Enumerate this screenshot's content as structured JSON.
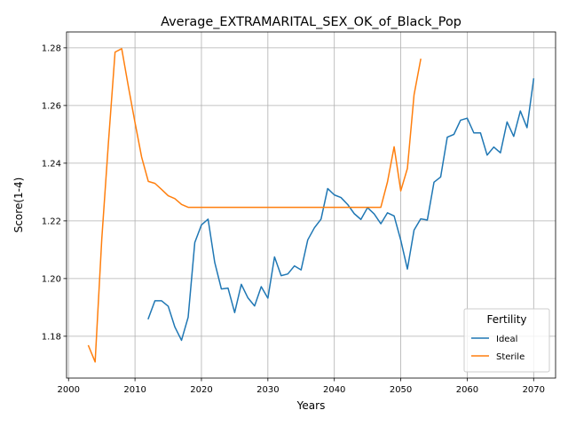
{
  "chart_data": {
    "type": "line",
    "title": "Average_EXTRAMARITAL_SEX_OK_of_Black_Pop",
    "xlabel": "Years",
    "ylabel": "Score(1-4)",
    "xlim": [
      1999.7,
      2073.3
    ],
    "ylim": [
      1.1655,
      1.2855
    ],
    "xticks": [
      2000,
      2010,
      2020,
      2030,
      2040,
      2050,
      2060,
      2070
    ],
    "yticks": [
      1.18,
      1.2,
      1.22,
      1.24,
      1.26,
      1.28
    ],
    "ytick_labels": [
      "1.18",
      "1.20",
      "1.22",
      "1.24",
      "1.26",
      "1.28"
    ],
    "grid": true,
    "legend": {
      "title": "Fertility",
      "placement": "lower-right"
    },
    "series": [
      {
        "name": "Ideal",
        "color": "#1f77b4",
        "x": [
          2012,
          2013,
          2014,
          2015,
          2016,
          2017,
          2018,
          2019,
          2020,
          2021,
          2022,
          2023,
          2024,
          2025,
          2026,
          2027,
          2028,
          2029,
          2030,
          2031,
          2032,
          2033,
          2034,
          2035,
          2036,
          2037,
          2038,
          2039,
          2040,
          2041,
          2042,
          2043,
          2044,
          2045,
          2046,
          2047,
          2048,
          2049,
          2050,
          2051,
          2052,
          2053,
          2054,
          2055,
          2056,
          2057,
          2058,
          2059,
          2060,
          2061,
          2062,
          2063,
          2064,
          2065,
          2066,
          2067,
          2068,
          2069,
          2070
        ],
        "y": [
          1.1861,
          1.1923,
          1.1923,
          1.1904,
          1.1832,
          1.1786,
          1.1866,
          1.2125,
          1.2186,
          1.2206,
          1.2056,
          1.1964,
          1.1967,
          1.1882,
          1.198,
          1.1933,
          1.1905,
          1.1972,
          1.1932,
          1.2075,
          1.201,
          1.2016,
          1.2044,
          1.203,
          1.2134,
          1.2176,
          1.2206,
          1.2312,
          1.229,
          1.2281,
          1.2257,
          1.2225,
          1.2205,
          1.2246,
          1.2224,
          1.219,
          1.2228,
          1.2217,
          1.2133,
          1.2033,
          1.2168,
          1.2207,
          1.2203,
          1.2334,
          1.2352,
          1.249,
          1.25,
          1.2549,
          1.2556,
          1.2505,
          1.2505,
          1.2428,
          1.2456,
          1.2436,
          1.2543,
          1.2493,
          1.2581,
          1.2523,
          1.2692
        ]
      },
      {
        "name": "Sterile",
        "color": "#ff7f0e",
        "x": [
          2003,
          2004,
          2005,
          2006,
          2007,
          2008,
          2009,
          2010,
          2011,
          2012,
          2013,
          2014,
          2015,
          2016,
          2017,
          2018,
          2019,
          2020,
          2025,
          2030,
          2035,
          2040,
          2045,
          2047,
          2048,
          2049,
          2050,
          2051,
          2052,
          2053
        ],
        "y": [
          1.1767,
          1.1711,
          1.2137,
          1.2471,
          1.2785,
          1.2797,
          1.2666,
          1.2541,
          1.2421,
          1.2337,
          1.233,
          1.2309,
          1.2287,
          1.2277,
          1.2257,
          1.2247,
          1.2247,
          1.2247,
          1.2247,
          1.2247,
          1.2247,
          1.2247,
          1.2247,
          1.2247,
          1.2335,
          1.2457,
          1.2304,
          1.2382,
          1.2637,
          1.276
        ]
      }
    ]
  }
}
